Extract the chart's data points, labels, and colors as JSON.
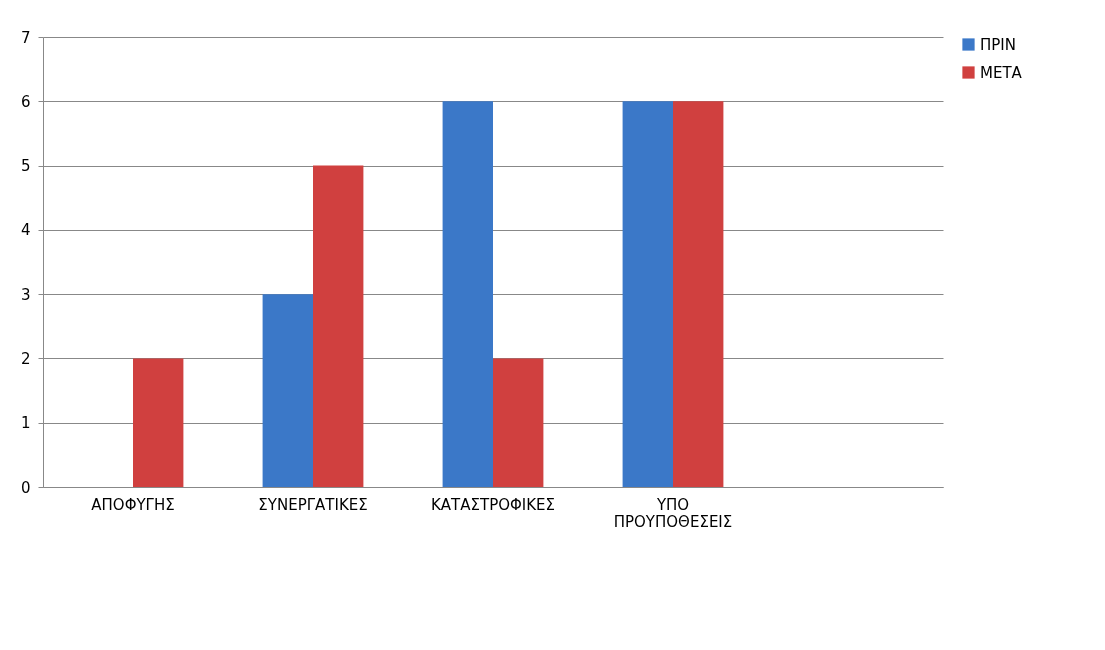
{
  "chart_data": {
    "type": "bar",
    "categories": [
      "ΑΠΟΦΥΓΗΣ",
      "ΣΥΝΕΡΓΑΤΙΚΕΣ",
      "ΚΑΤΑΣΤΡΟΦΙΚΕΣ",
      "ΥΠΟ ΠΡΟΥΠΟΘΕΣΕΙΣ",
      null
    ],
    "series": [
      {
        "name": "ΠΡΙΝ",
        "color": "#3b78c8",
        "values": [
          0,
          3,
          6,
          6,
          null
        ]
      },
      {
        "name": "ΜΕΤΑ",
        "color": "#d0403f",
        "values": [
          2,
          5,
          2,
          6,
          null
        ]
      }
    ],
    "ylim": [
      0,
      7
    ],
    "yticks": [
      0,
      1,
      2,
      3,
      4,
      5,
      6,
      7
    ],
    "grid": "y",
    "legend": "right"
  }
}
